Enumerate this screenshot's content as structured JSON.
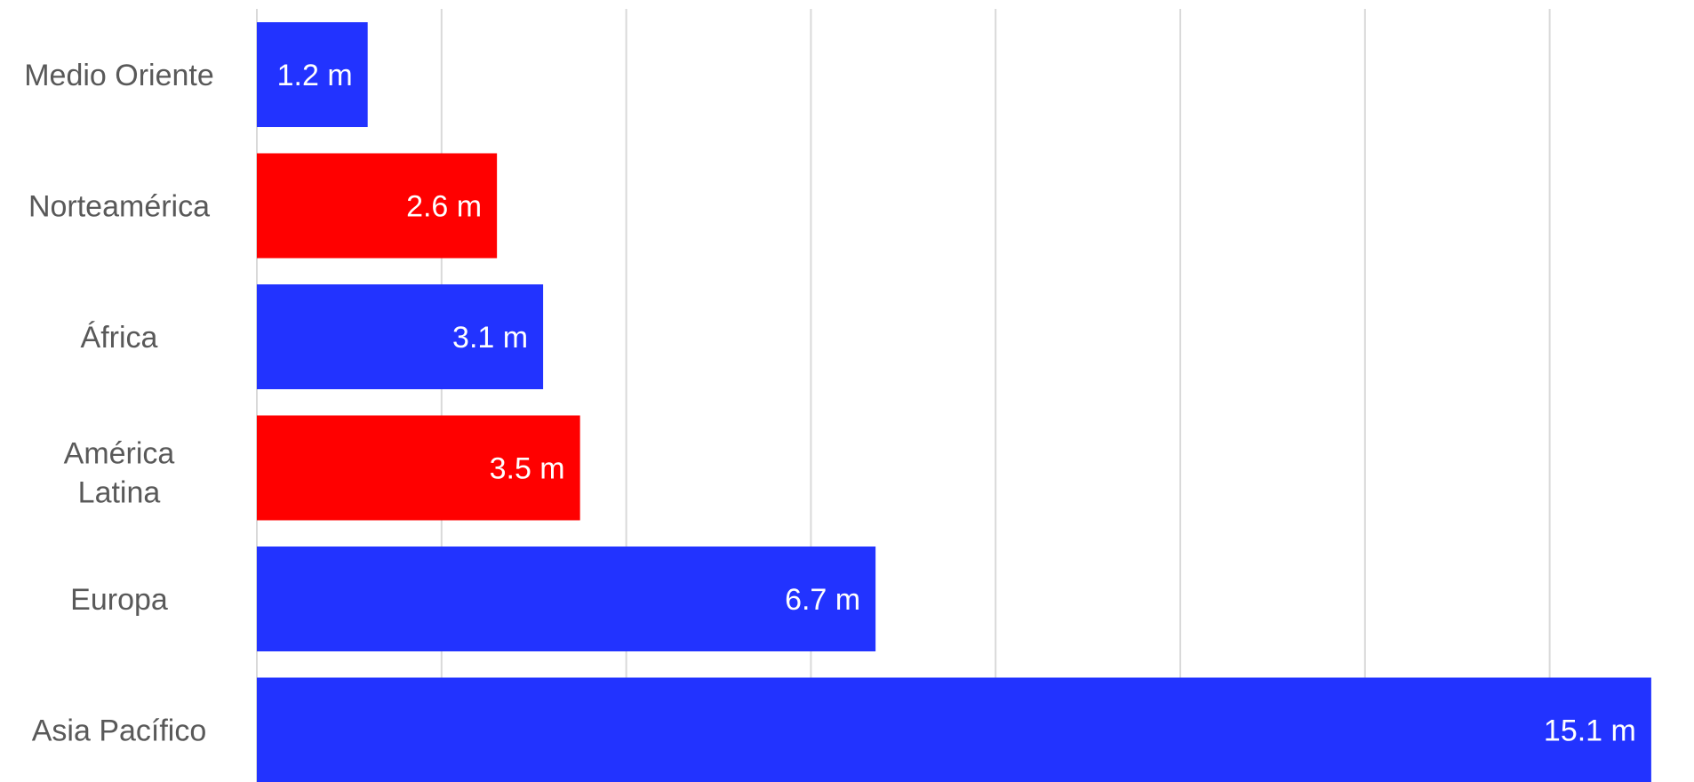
{
  "chart_data": {
    "type": "bar",
    "orientation": "horizontal",
    "categories": [
      "Medio Oriente",
      "Norteamérica",
      "África",
      "América Latina",
      "Europa",
      "Asia Pacífico"
    ],
    "values": [
      1.2,
      2.6,
      3.1,
      3.5,
      6.7,
      15.1
    ],
    "data_labels": [
      "1.2 m",
      "2.6 m",
      "3.1 m",
      "3.5 m",
      "6.7 m",
      "15.1 m"
    ],
    "colors": [
      "#2233ff",
      "#ff0000",
      "#2233ff",
      "#ff0000",
      "#2233ff",
      "#2233ff"
    ],
    "xlim": [
      0,
      16
    ],
    "grid": true,
    "gridline_color": "#d9d9d9",
    "title": "",
    "xlabel": "",
    "ylabel": ""
  }
}
